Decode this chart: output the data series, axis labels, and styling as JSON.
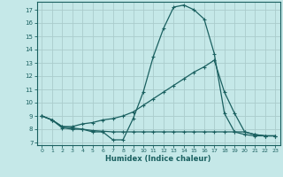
{
  "title": "",
  "xlabel": "Humidex (Indice chaleur)",
  "ylabel": "",
  "background_color": "#c5e8e8",
  "grid_color": "#b0d0d0",
  "line_color": "#1a6060",
  "xlim": [
    -0.5,
    23.5
  ],
  "ylim": [
    6.8,
    17.6
  ],
  "yticks": [
    7,
    8,
    9,
    10,
    11,
    12,
    13,
    14,
    15,
    16,
    17
  ],
  "xticks": [
    0,
    1,
    2,
    3,
    4,
    5,
    6,
    7,
    8,
    9,
    10,
    11,
    12,
    13,
    14,
    15,
    16,
    17,
    18,
    19,
    20,
    21,
    22,
    23
  ],
  "line1_x": [
    0,
    1,
    2,
    3,
    4,
    5,
    6,
    7,
    8,
    9,
    10,
    11,
    12,
    13,
    14,
    15,
    16,
    17,
    18,
    19,
    20,
    21,
    22,
    23
  ],
  "line1_y": [
    9.0,
    8.7,
    8.1,
    8.0,
    8.0,
    7.8,
    7.8,
    7.2,
    7.2,
    8.8,
    10.8,
    13.5,
    15.6,
    17.2,
    17.35,
    17.0,
    16.3,
    13.7,
    9.2,
    7.8,
    7.6,
    7.5,
    7.5,
    7.5
  ],
  "line2_x": [
    0,
    1,
    2,
    3,
    4,
    5,
    6,
    7,
    8,
    9,
    10,
    11,
    12,
    13,
    14,
    15,
    16,
    17,
    18,
    19,
    20,
    21,
    22,
    23
  ],
  "line2_y": [
    9.0,
    8.7,
    8.2,
    8.2,
    8.4,
    8.5,
    8.7,
    8.8,
    9.0,
    9.3,
    9.8,
    10.3,
    10.8,
    11.3,
    11.8,
    12.3,
    12.7,
    13.2,
    10.8,
    9.2,
    7.8,
    7.6,
    7.5,
    7.5
  ],
  "line3_x": [
    0,
    1,
    2,
    3,
    4,
    5,
    6,
    7,
    8,
    9,
    10,
    11,
    12,
    13,
    14,
    15,
    16,
    17,
    18,
    19,
    20,
    21,
    22,
    23
  ],
  "line3_y": [
    9.0,
    8.7,
    8.2,
    8.1,
    8.0,
    7.9,
    7.85,
    7.8,
    7.8,
    7.8,
    7.8,
    7.8,
    7.8,
    7.8,
    7.8,
    7.8,
    7.8,
    7.8,
    7.8,
    7.8,
    7.8,
    7.6,
    7.5,
    7.5
  ]
}
